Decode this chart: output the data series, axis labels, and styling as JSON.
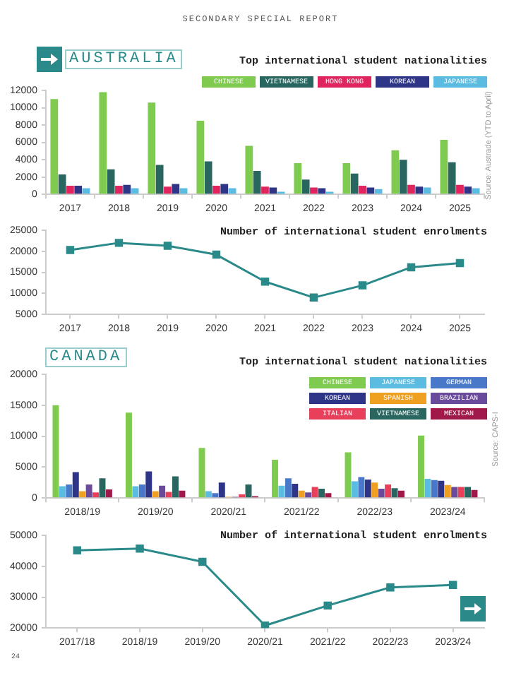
{
  "chart_data": [
    {
      "type": "bar",
      "title": "Top international student nationalities",
      "annotations": [
        "SECONDARY SPECIAL REPORT",
        "AUSTRALIA",
        "Source: Austrade (YTD to April)"
      ],
      "categories": [
        "2017",
        "2018",
        "2019",
        "2020",
        "2021",
        "2022",
        "2023",
        "2024",
        "2025"
      ],
      "series": [
        {
          "name": "CHINESE",
          "color": "#7ecb4f",
          "values": [
            11000,
            11800,
            10600,
            8500,
            5600,
            3600,
            3600,
            5100,
            6300
          ]
        },
        {
          "name": "VIETNAMESE",
          "color": "#2a6660",
          "values": [
            2300,
            2900,
            3400,
            3800,
            2700,
            1700,
            2400,
            4000,
            3700
          ]
        },
        {
          "name": "HONG KONG",
          "color": "#e0245e",
          "values": [
            1000,
            1000,
            900,
            1000,
            900,
            800,
            1000,
            1100,
            1100
          ]
        },
        {
          "name": "KOREAN",
          "color": "#2e3586",
          "values": [
            1000,
            1100,
            1200,
            1200,
            800,
            700,
            800,
            900,
            900
          ]
        },
        {
          "name": "JAPANESE",
          "color": "#5bbbe0",
          "values": [
            700,
            700,
            700,
            700,
            300,
            300,
            600,
            800,
            700
          ]
        }
      ],
      "ylim": [
        0,
        12000
      ],
      "yticks": [
        0,
        2000,
        4000,
        6000,
        8000,
        10000,
        12000
      ],
      "legend": "top right",
      "grid": false
    },
    {
      "type": "line",
      "title": "Number of international student enrolments",
      "categories": [
        "2017",
        "2018",
        "2019",
        "2020",
        "2021",
        "2022",
        "2023",
        "2024",
        "2025"
      ],
      "values": [
        20300,
        22000,
        21300,
        19200,
        12800,
        9000,
        11900,
        16200,
        17200
      ],
      "color": "#2a8a8a",
      "ylim": [
        5000,
        25000
      ],
      "yticks": [
        5000,
        10000,
        15000,
        20000,
        25000
      ],
      "marker": "square",
      "line_style": "solid",
      "grid": false
    },
    {
      "type": "bar",
      "title": "Top international student nationalities",
      "annotations": [
        "CANADA",
        "Source: CAPS-I"
      ],
      "categories": [
        "2018/19",
        "2019/20",
        "2020/21",
        "2021/22",
        "2022/23",
        "2023/24"
      ],
      "series": [
        {
          "name": "CHINESE",
          "color": "#7ecb4f",
          "values": [
            15000,
            13800,
            8100,
            6200,
            7400,
            10100
          ]
        },
        {
          "name": "JAPANESE",
          "color": "#5bbbe0",
          "values": [
            1900,
            1900,
            1100,
            2000,
            2700,
            3100
          ]
        },
        {
          "name": "GERMAN",
          "color": "#4a78c8",
          "values": [
            2200,
            2200,
            800,
            3200,
            3400,
            2900
          ]
        },
        {
          "name": "KOREAN",
          "color": "#2e3586",
          "values": [
            4200,
            4300,
            2500,
            2300,
            3000,
            2800
          ]
        },
        {
          "name": "SPANISH",
          "color": "#f0a020",
          "values": [
            1100,
            1100,
            200,
            1200,
            2500,
            2100
          ]
        },
        {
          "name": "BRAZILIAN",
          "color": "#6a4a9a",
          "values": [
            2200,
            2000,
            200,
            900,
            1500,
            1800
          ]
        },
        {
          "name": "ITALIAN",
          "color": "#e8405a",
          "values": [
            900,
            1000,
            600,
            1800,
            2200,
            1800
          ]
        },
        {
          "name": "VIETNAMESE",
          "color": "#2a6660",
          "values": [
            3200,
            3500,
            2200,
            1500,
            1600,
            1800
          ]
        },
        {
          "name": "MEXICAN",
          "color": "#a0194a",
          "values": [
            1400,
            1200,
            300,
            800,
            1200,
            1300
          ]
        }
      ],
      "ylim": [
        0,
        20000
      ],
      "yticks": [
        0,
        5000,
        10000,
        15000,
        20000
      ],
      "legend": "top right",
      "grid": false
    },
    {
      "type": "line",
      "title": "Number of international student enrolments",
      "annotations": [
        "24"
      ],
      "categories": [
        "2017/18",
        "2018/19",
        "2019/20",
        "2020/21",
        "2021/22",
        "2022/23",
        "2023/24"
      ],
      "values": [
        45200,
        45800,
        41500,
        20800,
        27300,
        33200,
        34000
      ],
      "color": "#2a8a8a",
      "ylim": [
        20000,
        50000
      ],
      "yticks": [
        20000,
        30000,
        40000,
        50000
      ],
      "marker": "square",
      "line_style": "solid",
      "grid": false
    }
  ]
}
